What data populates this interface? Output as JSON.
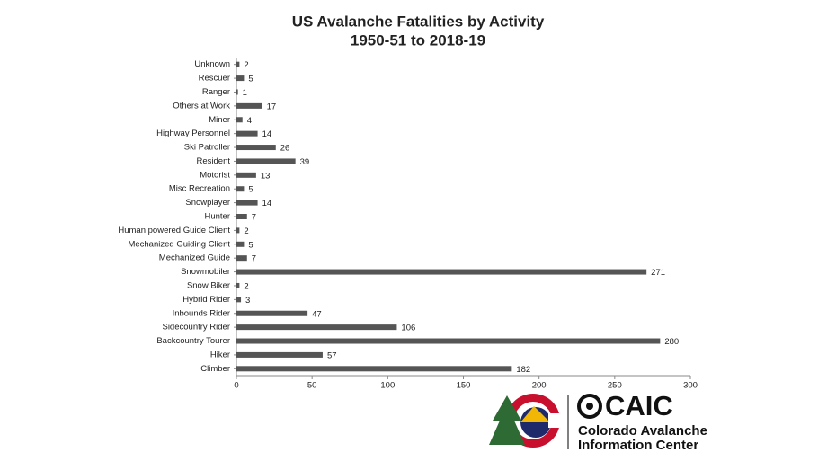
{
  "chart_data": {
    "type": "barh",
    "title": "US Avalanche Fatalities by Activity",
    "subtitle": "1950-51 to 2018-19",
    "categories": [
      "Unknown",
      "Rescuer",
      "Ranger",
      "Others at Work",
      "Miner",
      "Highway Personnel",
      "Ski Patroller",
      "Resident",
      "Motorist",
      "Misc Recreation",
      "Snowplayer",
      "Hunter",
      "Human powered Guide Client",
      "Mechanized Guiding Client",
      "Mechanized Guide",
      "Snowmobiler",
      "Snow Biker",
      "Hybrid Rider",
      "Inbounds Rider",
      "Sidecountry Rider",
      "Backcountry Tourer",
      "Hiker",
      "Climber"
    ],
    "values": [
      2,
      5,
      1,
      17,
      4,
      14,
      26,
      39,
      13,
      5,
      14,
      7,
      2,
      5,
      7,
      271,
      2,
      3,
      47,
      106,
      280,
      57,
      182
    ],
    "color": "#555555",
    "xlim": [
      0,
      300
    ],
    "xticks": [
      0,
      50,
      100,
      150,
      200,
      250,
      300
    ],
    "grid": false
  },
  "logo": {
    "name": "CAIC",
    "lines": [
      "Colorado Avalanche",
      "Information Center"
    ]
  }
}
